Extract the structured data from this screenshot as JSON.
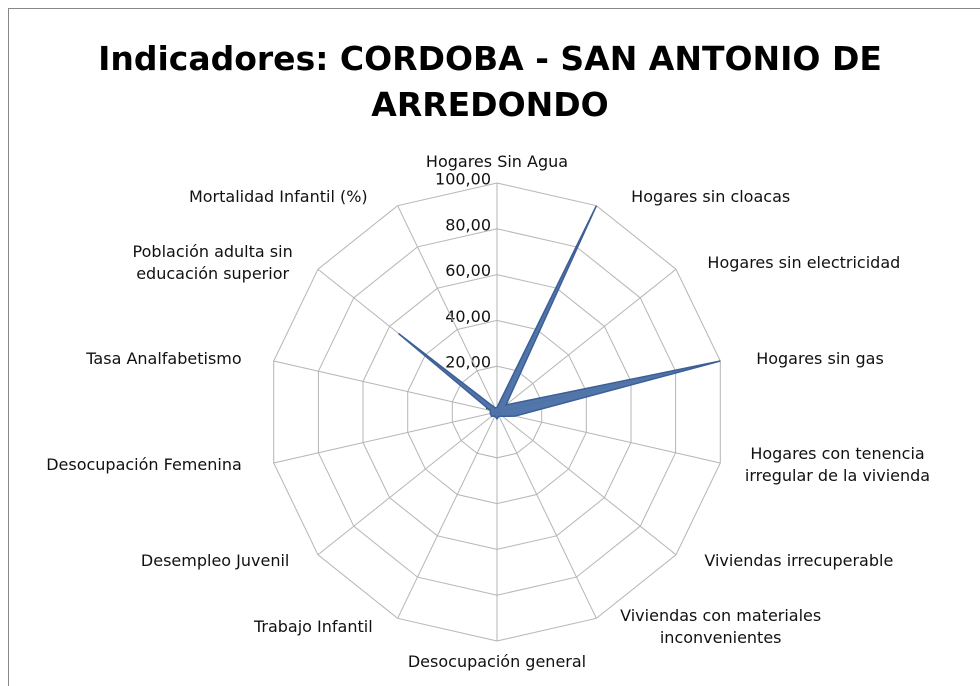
{
  "chart_data": {
    "type": "radar",
    "title": "Indicadores: CORDOBA - SAN ANTONIO DE ARREDONDO",
    "categories": [
      "Hogares Sin Agua",
      "Hogares sin cloacas",
      "Hogares sin electricidad",
      "Hogares sin gas",
      "Hogares con tenencia irregular de la vivienda",
      "Viviendas irrecuperable",
      "Viviendas con materiales inconvenientes",
      "Desocupación general",
      "Trabajo Infantil",
      "Desempleo Juvenil",
      "Desocupación Femenina",
      "Tasa Analfabetismo",
      "Población adulta  sin educación superior",
      "Mortalidad Infantil (%)"
    ],
    "values": [
      2,
      100,
      5,
      100,
      8,
      3,
      2,
      3,
      2,
      3,
      3,
      3,
      55,
      2
    ],
    "color": "#4a6fa5",
    "ylim": [
      0,
      100
    ],
    "yticks": [
      {
        "value": 0,
        "label": "-"
      },
      {
        "value": 20,
        "label": "20,00"
      },
      {
        "value": 40,
        "label": "40,00"
      },
      {
        "value": 60,
        "label": "60,00"
      },
      {
        "value": 80,
        "label": "80,00"
      },
      {
        "value": 100,
        "label": "100,00"
      }
    ],
    "grid": true
  }
}
